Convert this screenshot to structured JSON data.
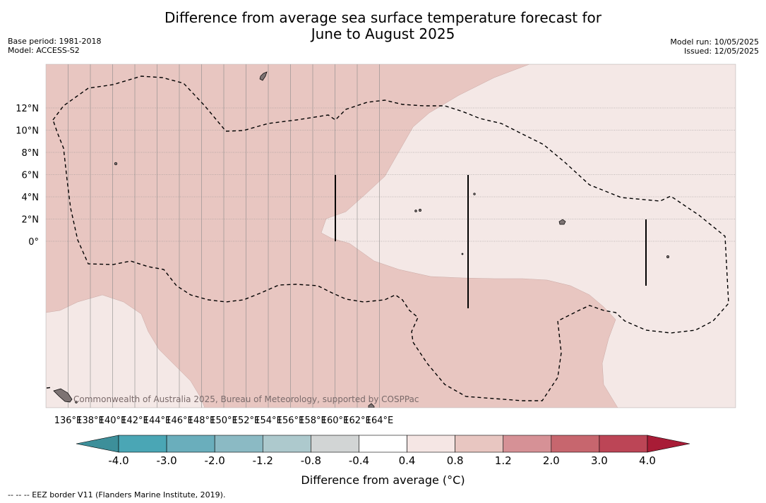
{
  "title": {
    "line1": "Difference from average sea surface temperature forecast for",
    "line2": "June to August 2025"
  },
  "meta": {
    "base_period": "Base period: 1981-2018",
    "model": "Model: ACCESS-S2",
    "model_run": "Model run: 10/05/2025",
    "issued": "Issued: 12/05/2025"
  },
  "axes": {
    "x_ticks": [
      "136°E",
      "138°E",
      "140°E",
      "142°E",
      "144°E",
      "146°E",
      "148°E",
      "150°E",
      "152°E",
      "154°E",
      "156°E",
      "158°E",
      "160°E",
      "162°E",
      "164°E"
    ],
    "y_ticks": [
      "12°N",
      "10°N",
      "8°N",
      "6°N",
      "4°N",
      "2°N",
      "0°"
    ]
  },
  "credit": "Commonwealth of Australia 2025, Bureau of Meteorology, supported by COSPPac",
  "colorbar": {
    "title": "Difference from average (°C)",
    "labels": [
      "-4.0",
      "-3.0",
      "-2.0",
      "-1.2",
      "-0.8",
      "-0.4",
      "0.4",
      "0.8",
      "1.2",
      "2.0",
      "3.0",
      "4.0"
    ],
    "colors": [
      "#3d8f9a",
      "#4aa6b5",
      "#6aaebc",
      "#8bbac4",
      "#adc9cd",
      "#d2d5d5",
      "#ffffff",
      "#f5e6e4",
      "#e8c6c1",
      "#d69196",
      "#c7666e",
      "#bc4556",
      "#a81c36"
    ]
  },
  "map_colors": {
    "anomaly_0_4_0_8": "#f4e8e6",
    "anomaly_0_8_1_2": "#e8c6c1",
    "land": "#7d7373"
  },
  "footer": "-- -- -- EEZ border V11 (Flanders Marine Institute, 2019)."
}
